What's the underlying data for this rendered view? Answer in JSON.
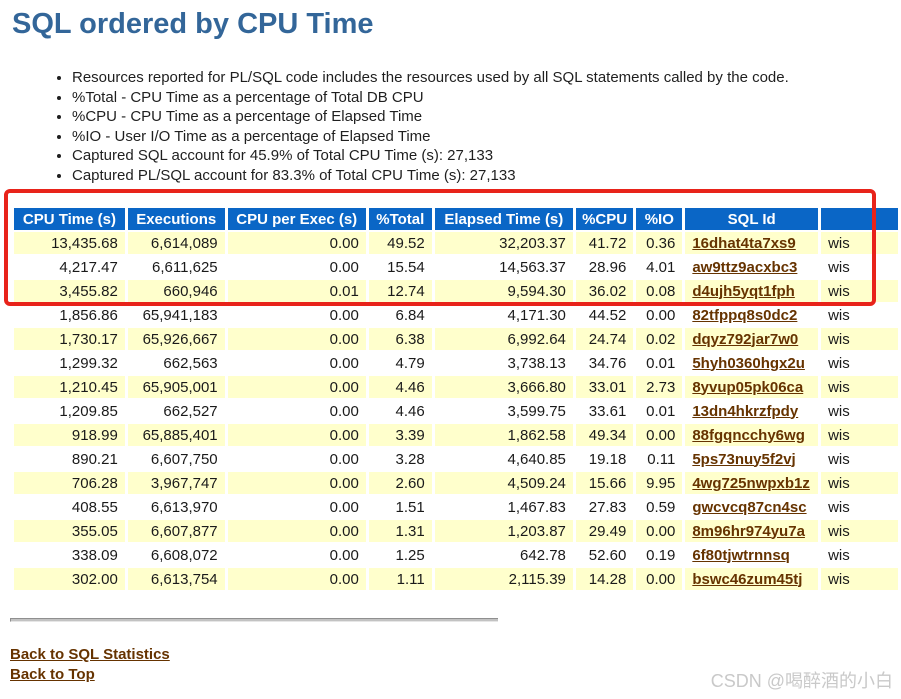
{
  "page": {
    "title": "SQL ordered by CPU Time",
    "notes": [
      "Resources reported for PL/SQL code includes the resources used by all SQL statements called by the code.",
      "%Total - CPU Time as a percentage of Total DB CPU",
      "%CPU - CPU Time as a percentage of Elapsed Time",
      "%IO - User I/O Time as a percentage of Elapsed Time",
      "Captured SQL account for 45.9% of Total CPU Time (s): 27,133",
      "Captured PL/SQL account for 83.3% of Total CPU Time (s): 27,133"
    ]
  },
  "table": {
    "columns": [
      "CPU Time (s)",
      "Executions",
      "CPU per Exec (s)",
      "%Total",
      "Elapsed Time (s)",
      "%CPU",
      "%IO",
      "SQL Id",
      ""
    ],
    "rows": [
      [
        "13,435.68",
        "6,614,089",
        "0.00",
        "49.52",
        "32,203.37",
        "41.72",
        "0.36",
        "16dhat4ta7xs9",
        "wis"
      ],
      [
        "4,217.47",
        "6,611,625",
        "0.00",
        "15.54",
        "14,563.37",
        "28.96",
        "4.01",
        "aw9ttz9acxbc3",
        "wis"
      ],
      [
        "3,455.82",
        "660,946",
        "0.01",
        "12.74",
        "9,594.30",
        "36.02",
        "0.08",
        "d4ujh5yqt1fph",
        "wis"
      ],
      [
        "1,856.86",
        "65,941,183",
        "0.00",
        "6.84",
        "4,171.30",
        "44.52",
        "0.00",
        "82tfppq8s0dc2",
        "wis"
      ],
      [
        "1,730.17",
        "65,926,667",
        "0.00",
        "6.38",
        "6,992.64",
        "24.74",
        "0.02",
        "dqyz792jar7w0",
        "wis"
      ],
      [
        "1,299.32",
        "662,563",
        "0.00",
        "4.79",
        "3,738.13",
        "34.76",
        "0.01",
        "5hyh0360hgx2u",
        "wis"
      ],
      [
        "1,210.45",
        "65,905,001",
        "0.00",
        "4.46",
        "3,666.80",
        "33.01",
        "2.73",
        "8yvup05pk06ca",
        "wis"
      ],
      [
        "1,209.85",
        "662,527",
        "0.00",
        "4.46",
        "3,599.75",
        "33.61",
        "0.01",
        "13dn4hkrzfpdy",
        "wis"
      ],
      [
        "918.99",
        "65,885,401",
        "0.00",
        "3.39",
        "1,862.58",
        "49.34",
        "0.00",
        "88fgqncchy6wg",
        "wis"
      ],
      [
        "890.21",
        "6,607,750",
        "0.00",
        "3.28",
        "4,640.85",
        "19.18",
        "0.11",
        "5ps73nuy5f2vj",
        "wis"
      ],
      [
        "706.28",
        "3,967,747",
        "0.00",
        "2.60",
        "4,509.24",
        "15.66",
        "9.95",
        "4wg725nwpxb1z",
        "wis"
      ],
      [
        "408.55",
        "6,613,970",
        "0.00",
        "1.51",
        "1,467.83",
        "27.83",
        "0.59",
        "gwcvcq87cn4sc",
        "wis"
      ],
      [
        "355.05",
        "6,607,877",
        "0.00",
        "1.31",
        "1,203.87",
        "29.49",
        "0.00",
        "8m96hr974yu7a",
        "wis"
      ],
      [
        "338.09",
        "6,608,072",
        "0.00",
        "1.25",
        "642.78",
        "52.60",
        "0.19",
        "6f80tjwtrnnsq",
        "wis"
      ],
      [
        "302.00",
        "6,613,754",
        "0.00",
        "1.11",
        "2,115.39",
        "14.28",
        "0.00",
        "bswc46zum45tj",
        "wis"
      ]
    ]
  },
  "links": {
    "back_to_sql_statistics": "Back to SQL Statistics",
    "back_to_top": "Back to Top"
  },
  "watermark": "CSDN @喝醉酒的小白",
  "annotation": {
    "shape": "red-rectangle",
    "color": "#e8231a",
    "covers": "table header and first 3 rows"
  },
  "colors": {
    "title": "#336699",
    "table_header_bg": "#0a66c6",
    "row_stripe": "#ffffcc",
    "link": "#663300",
    "annotation": "#e8231a"
  }
}
